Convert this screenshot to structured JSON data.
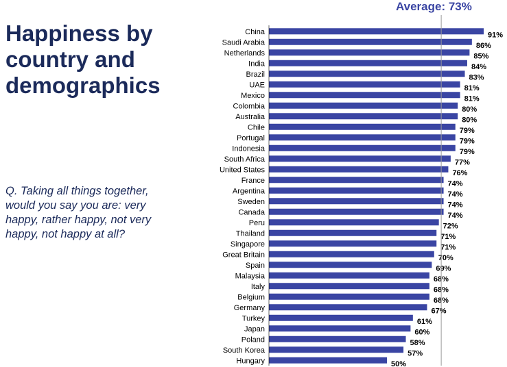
{
  "title": "Happiness by country and demographics",
  "question": "Q. Taking all things together, would you say you are: very happy, rather happy, not very happy, not happy at all?",
  "average_label": "Average: 73%",
  "colors": {
    "bar": "#3a45a3",
    "title": "#1b2a5a",
    "average_line": "#999999"
  },
  "chart_data": {
    "type": "bar",
    "orientation": "horizontal",
    "categories": [
      "China",
      "Saudi Arabia",
      "Netherlands",
      "India",
      "Brazil",
      "UAE",
      "Mexico",
      "Colombia",
      "Australia",
      "Chile",
      "Portugal",
      "Indonesia",
      "South Africa",
      "United States",
      "France",
      "Argentina",
      "Sweden",
      "Canada",
      "Peru",
      "Thailand",
      "Singapore",
      "Great Britain",
      "Spain",
      "Malaysia",
      "Italy",
      "Belgium",
      "Germany",
      "Turkey",
      "Japan",
      "Poland",
      "South Korea",
      "Hungary"
    ],
    "values": [
      91,
      86,
      85,
      84,
      83,
      81,
      81,
      80,
      80,
      79,
      79,
      79,
      77,
      76,
      74,
      74,
      74,
      74,
      72,
      71,
      71,
      70,
      69,
      68,
      68,
      68,
      67,
      61,
      60,
      58,
      57,
      50
    ],
    "value_labels": [
      "91%",
      "86%",
      "85%",
      "84%",
      "83%",
      "81%",
      "81%",
      "80%",
      "80%",
      "79%",
      "79%",
      "79%",
      "77%",
      "76%",
      "74%",
      "74%",
      "74%",
      "74%",
      "72%",
      "71%",
      "71%",
      "70%",
      "69%",
      "68%",
      "68%",
      "68%",
      "67%",
      "61%",
      "60%",
      "58%",
      "57%",
      "50%"
    ],
    "average": 73,
    "unit": "%"
  }
}
